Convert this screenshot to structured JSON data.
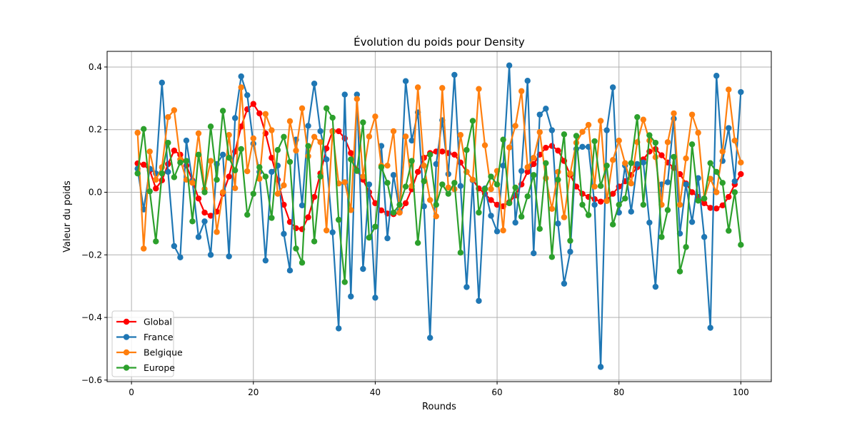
{
  "chart_data": {
    "type": "line",
    "title": "Évolution du poids pour Density",
    "xlabel": "Rounds",
    "ylabel": "Valeur du poids",
    "xlim": [
      -4,
      105
    ],
    "ylim": [
      -0.605,
      0.45
    ],
    "xticks": [
      0,
      20,
      40,
      60,
      80,
      100
    ],
    "yticks": [
      -0.6,
      -0.4,
      -0.2,
      0.0,
      0.2,
      0.4
    ],
    "xtick_labels": [
      "0",
      "20",
      "40",
      "60",
      "80",
      "100"
    ],
    "ytick_labels": [
      "−0.6",
      "−0.4",
      "−0.2",
      "0.0",
      "0.2",
      "0.4"
    ],
    "grid": true,
    "legend_position": "lower-left",
    "x": [
      1,
      2,
      3,
      4,
      5,
      6,
      7,
      8,
      9,
      10,
      11,
      12,
      13,
      14,
      15,
      16,
      17,
      18,
      19,
      20,
      21,
      22,
      23,
      24,
      25,
      26,
      27,
      28,
      29,
      30,
      31,
      32,
      33,
      34,
      35,
      36,
      37,
      38,
      39,
      40,
      41,
      42,
      43,
      44,
      45,
      46,
      47,
      48,
      49,
      50,
      51,
      52,
      53,
      54,
      55,
      56,
      57,
      58,
      59,
      60,
      61,
      62,
      63,
      64,
      65,
      66,
      67,
      68,
      69,
      70,
      71,
      72,
      73,
      74,
      75,
      76,
      77,
      78,
      79,
      80,
      81,
      82,
      83,
      84,
      85,
      86,
      87,
      88,
      89,
      90,
      91,
      92,
      93,
      94,
      95,
      96,
      97,
      98,
      99,
      100
    ],
    "series": [
      {
        "name": "Global",
        "color": "#ff0000",
        "values": [
          0.092,
          0.088,
          0.07,
          0.012,
          0.038,
          0.09,
          0.133,
          0.12,
          0.085,
          0.038,
          -0.02,
          -0.065,
          -0.075,
          -0.062,
          -0.005,
          0.05,
          0.13,
          0.21,
          0.265,
          0.282,
          0.252,
          0.188,
          0.11,
          0.04,
          -0.04,
          -0.095,
          -0.115,
          -0.118,
          -0.08,
          -0.015,
          0.06,
          0.14,
          0.195,
          0.195,
          0.172,
          0.125,
          0.07,
          0.04,
          0.0,
          -0.035,
          -0.058,
          -0.068,
          -0.07,
          -0.065,
          -0.035,
          0.01,
          0.065,
          0.11,
          0.125,
          0.13,
          0.13,
          0.125,
          0.12,
          0.095,
          0.065,
          0.04,
          0.012,
          -0.005,
          -0.025,
          -0.04,
          -0.045,
          -0.032,
          -0.01,
          0.025,
          0.065,
          0.09,
          0.12,
          0.142,
          0.148,
          0.133,
          0.1,
          0.055,
          0.018,
          -0.005,
          -0.015,
          -0.022,
          -0.03,
          -0.025,
          -0.005,
          0.018,
          0.035,
          0.055,
          0.08,
          0.105,
          0.13,
          0.138,
          0.118,
          0.095,
          0.078,
          0.058,
          0.028,
          0.0,
          -0.015,
          -0.035,
          -0.05,
          -0.052,
          -0.042,
          -0.015,
          0.025,
          0.058
        ]
      },
      {
        "name": "France",
        "color": "#1f77b4",
        "values": [
          0.075,
          -0.055,
          0.075,
          0.06,
          0.35,
          0.065,
          -0.172,
          -0.208,
          0.165,
          0.035,
          -0.143,
          -0.093,
          -0.2,
          0.09,
          0.12,
          -0.205,
          0.237,
          0.37,
          0.31,
          0.155,
          0.065,
          -0.218,
          0.065,
          0.085,
          -0.133,
          -0.25,
          0.168,
          -0.042,
          0.212,
          0.347,
          0.195,
          0.105,
          -0.128,
          -0.435,
          0.312,
          -0.333,
          0.312,
          -0.245,
          0.025,
          -0.337,
          0.148,
          -0.147,
          0.055,
          -0.06,
          0.355,
          0.165,
          0.255,
          -0.045,
          -0.465,
          0.09,
          0.23,
          0.058,
          0.375,
          0.02,
          -0.303,
          0.038,
          -0.347,
          0.012,
          -0.075,
          -0.125,
          0.085,
          0.405,
          -0.097,
          0.068,
          0.356,
          -0.195,
          0.248,
          0.267,
          0.198,
          -0.1,
          -0.292,
          -0.19,
          0.138,
          0.145,
          0.145,
          -0.04,
          -0.558,
          0.198,
          0.335,
          -0.065,
          0.085,
          -0.062,
          0.09,
          0.095,
          -0.097,
          -0.302,
          0.025,
          0.032,
          0.235,
          -0.132,
          0.025,
          -0.095,
          0.045,
          -0.143,
          -0.433,
          0.372,
          0.1,
          0.205,
          0.035,
          0.32
        ]
      },
      {
        "name": "Belgique",
        "color": "#ff7f0e",
        "values": [
          0.19,
          -0.18,
          0.13,
          0.04,
          0.08,
          0.24,
          0.262,
          0.105,
          0.04,
          0.03,
          0.188,
          0.01,
          0.1,
          -0.127,
          0.0,
          0.183,
          0.013,
          0.335,
          0.067,
          0.172,
          0.043,
          0.25,
          0.198,
          -0.005,
          0.022,
          0.227,
          0.133,
          0.268,
          0.115,
          0.177,
          0.16,
          -0.122,
          0.193,
          0.028,
          0.032,
          -0.057,
          0.298,
          0.05,
          0.178,
          0.242,
          0.085,
          0.085,
          0.195,
          -0.065,
          0.178,
          0.02,
          0.335,
          0.085,
          -0.025,
          -0.077,
          0.333,
          0.015,
          0.01,
          0.183,
          0.065,
          0.04,
          0.33,
          0.15,
          0.01,
          0.068,
          -0.122,
          0.143,
          0.212,
          0.323,
          0.08,
          0.11,
          0.192,
          0.045,
          -0.053,
          0.065,
          -0.08,
          0.06,
          0.158,
          0.193,
          0.215,
          0.018,
          0.228,
          -0.028,
          0.103,
          0.165,
          0.093,
          0.028,
          0.16,
          0.232,
          0.165,
          0.112,
          -0.04,
          0.16,
          0.252,
          -0.04,
          0.108,
          0.248,
          0.19,
          -0.02,
          0.043,
          0.0,
          0.13,
          0.328,
          0.165,
          0.095
        ]
      },
      {
        "name": "Europe",
        "color": "#2ca02c",
        "values": [
          0.06,
          0.202,
          0.003,
          -0.157,
          0.06,
          0.158,
          0.048,
          0.095,
          0.1,
          -0.093,
          0.12,
          0.0,
          0.21,
          0.04,
          0.26,
          0.11,
          0.07,
          0.138,
          -0.072,
          -0.005,
          0.08,
          0.05,
          -0.082,
          0.135,
          0.177,
          0.097,
          -0.18,
          -0.225,
          0.148,
          -0.157,
          0.05,
          0.268,
          0.238,
          -0.088,
          -0.287,
          0.105,
          0.068,
          0.223,
          -0.145,
          -0.11,
          0.08,
          0.03,
          -0.065,
          -0.04,
          0.018,
          0.1,
          -0.162,
          0.035,
          0.12,
          -0.04,
          0.025,
          -0.005,
          0.03,
          -0.193,
          0.135,
          0.228,
          -0.065,
          0.01,
          0.05,
          0.025,
          0.168,
          -0.035,
          0.015,
          -0.078,
          -0.013,
          0.055,
          -0.117,
          0.093,
          -0.207,
          0.04,
          0.185,
          -0.155,
          0.18,
          -0.04,
          -0.073,
          0.163,
          0.02,
          0.085,
          -0.103,
          -0.04,
          -0.02,
          0.093,
          0.24,
          -0.04,
          0.182,
          0.158,
          -0.143,
          -0.057,
          0.113,
          -0.253,
          -0.175,
          0.153,
          -0.027,
          -0.02,
          0.093,
          0.065,
          0.03,
          -0.123,
          0.0,
          -0.168
        ]
      }
    ]
  }
}
